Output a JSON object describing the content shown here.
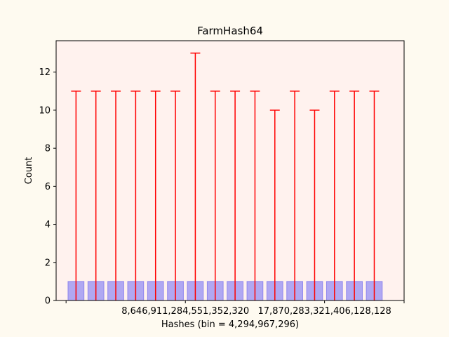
{
  "chart_data": {
    "type": "bar",
    "title": "FarmHash64",
    "xlabel": "Hashes (bin = 4,294,967,296)",
    "ylabel": "Count",
    "ylim": [
      0,
      13.65
    ],
    "yticks": [
      0,
      2,
      4,
      6,
      8,
      10,
      12
    ],
    "xtick_labels": [
      {
        "label": "8,646,911,284,551,352,320",
        "position": 5.5
      },
      {
        "label": "17,870,283,321,406,128,128",
        "position": 12.5
      }
    ],
    "xlim": [
      -1,
      16.5
    ],
    "values": [
      1,
      1,
      1,
      1,
      1,
      1,
      1,
      1,
      1,
      1,
      1,
      1,
      1,
      1,
      1,
      1
    ],
    "error_upper": [
      11,
      11,
      11,
      11,
      11,
      11,
      13,
      11,
      11,
      11,
      10,
      11,
      10,
      11,
      11,
      11
    ],
    "grid": false,
    "legend": "none",
    "colors": {
      "bar_fill": "#b0a8f2",
      "bar_edge": "#8f86ee",
      "error": "#ff0000",
      "plot_bg": "#fff2ee",
      "page_bg": "#fefaf0"
    }
  }
}
